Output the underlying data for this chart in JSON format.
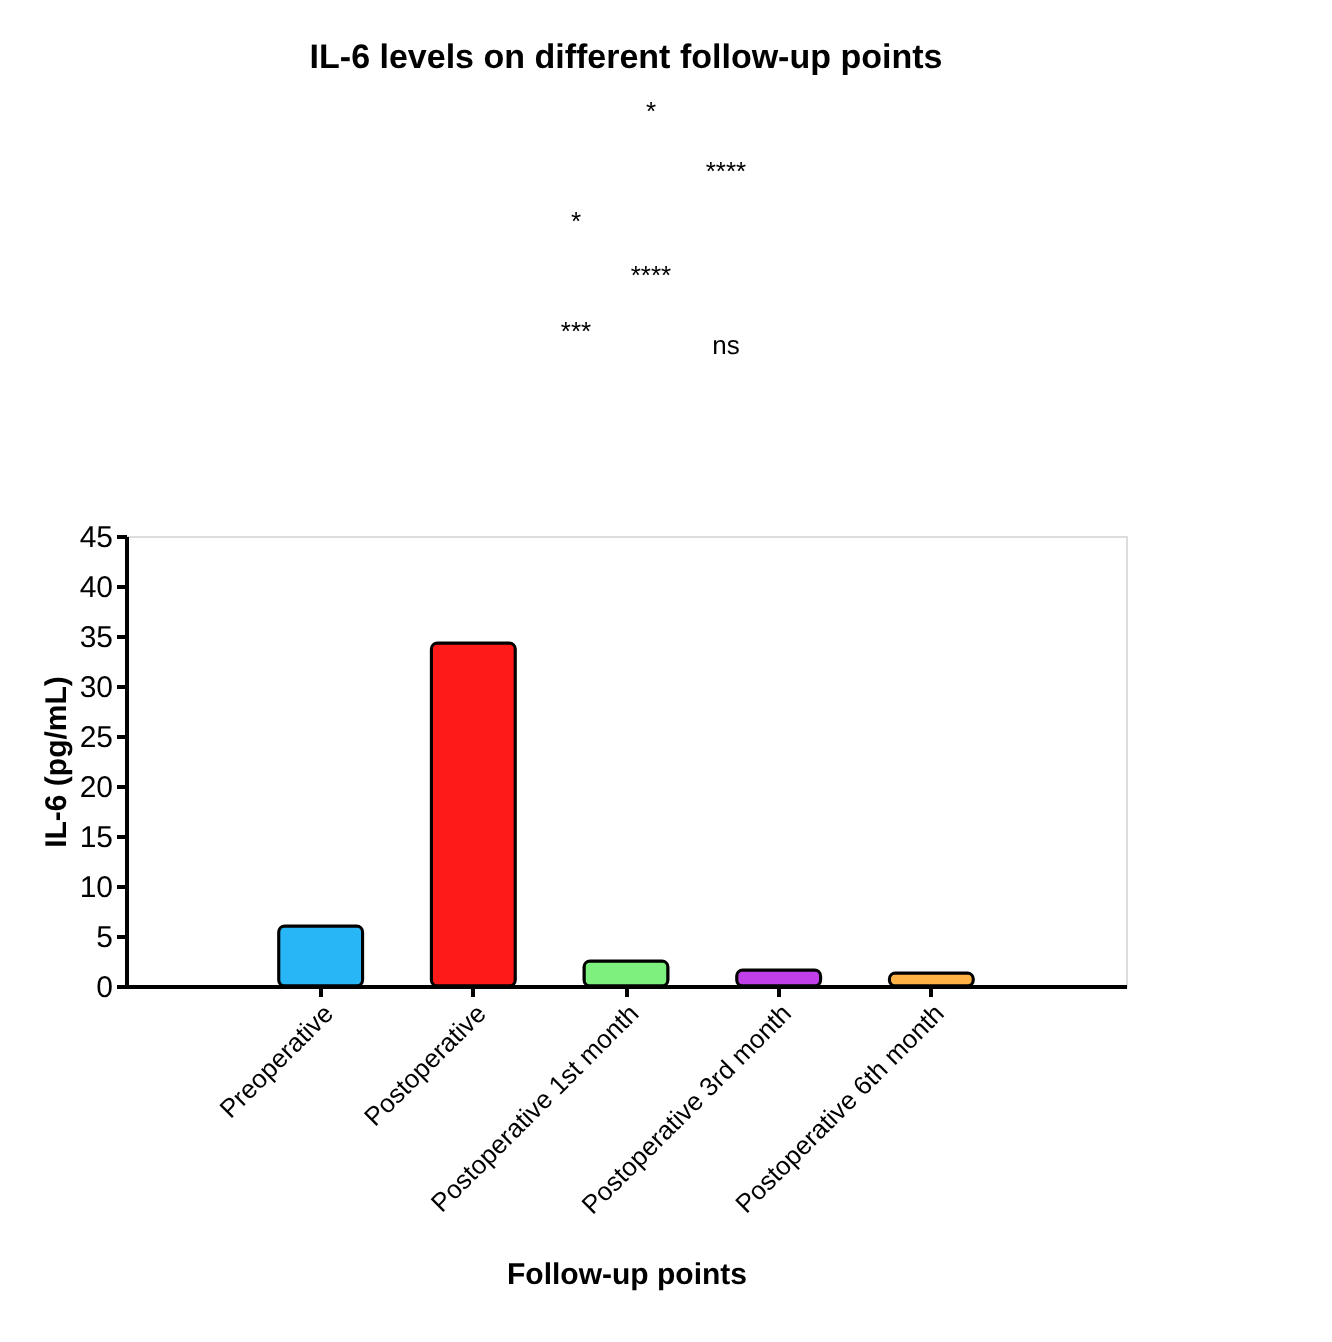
{
  "chart_data": {
    "type": "bar",
    "title": "IL-6 levels on different follow-up points",
    "xlabel": "Follow-up points",
    "ylabel": "IL-6 (pg/mL)",
    "categories": [
      "Preoperative",
      "Postoperative",
      "Postoperative 1st month",
      "Postoperative 3rd month",
      "Postoperative 6th month"
    ],
    "values": [
      6.0,
      34.3,
      2.5,
      1.6,
      1.3
    ],
    "colors": [
      "#29b6f6",
      "#ff1a1a",
      "#7ef07e",
      "#c03fe8",
      "#ffb347"
    ],
    "ylim": [
      0,
      45
    ],
    "yticks": [
      0,
      5,
      10,
      15,
      20,
      25,
      30,
      35,
      40,
      45
    ],
    "grid": false,
    "annotations": [
      "*",
      "****",
      "*",
      "****",
      "***",
      "ns"
    ]
  }
}
